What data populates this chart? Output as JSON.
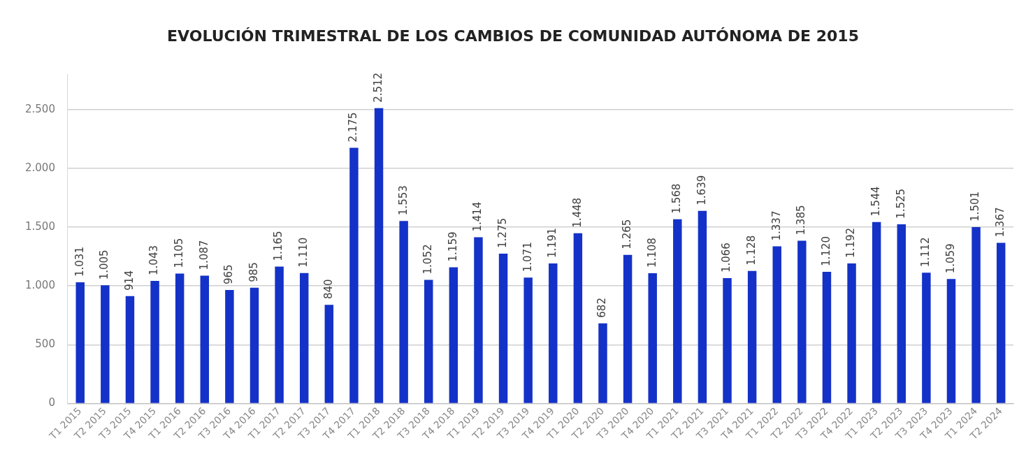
{
  "chart_data": {
    "type": "bar",
    "title": "EVOLUCIÓN TRIMESTRAL DE LOS CAMBIOS DE COMUNIDAD AUTÓNOMA DE 2015",
    "categories": [
      "T1 2015",
      "T2 2015",
      "T3 2015",
      "T4 2015",
      "T1 2016",
      "T2 2016",
      "T3 2016",
      "T4 2016",
      "T1 2017",
      "T2 2017",
      "T3 2017",
      "T4 2017",
      "T1 2018",
      "T2 2018",
      "T3 2018",
      "T4 2018",
      "T1 2019",
      "T2 2019",
      "T3 2019",
      "T4 2019",
      "T1 2020",
      "T2 2020",
      "T3 2020",
      "T4 2020",
      "T1 2021",
      "T2 2021",
      "T3 2021",
      "T4 2021",
      "T1 2022",
      "T2 2022",
      "T3 2022",
      "T4 2022",
      "T1 2023",
      "T2 2023",
      "T3 2023",
      "T4 2023",
      "T1 2024",
      "T2 2024"
    ],
    "values": [
      1031,
      1005,
      914,
      1043,
      1105,
      1087,
      965,
      985,
      1165,
      1110,
      840,
      2175,
      2512,
      1553,
      1052,
      1159,
      1414,
      1275,
      1071,
      1191,
      1448,
      682,
      1265,
      1108,
      1568,
      1639,
      1066,
      1128,
      1337,
      1385,
      1120,
      1192,
      1544,
      1525,
      1112,
      1059,
      1501,
      1367
    ],
    "color": "#1432c8",
    "ylim": [
      0,
      2800
    ],
    "yticks": [
      {
        "value": 0,
        "label": "0"
      },
      {
        "value": 500,
        "label": "500"
      },
      {
        "value": 1000,
        "label": "1.000"
      },
      {
        "value": 1500,
        "label": "1.500"
      },
      {
        "value": 2000,
        "label": "2.000"
      },
      {
        "value": 2500,
        "label": "2.500"
      }
    ],
    "value_labels": [
      "1.031",
      "1.005",
      "914",
      "1.043",
      "1.105",
      "1.087",
      "965",
      "985",
      "1.165",
      "1.110",
      "840",
      "2.175",
      "2.512",
      "1.553",
      "1.052",
      "1.159",
      "1.414",
      "1.275",
      "1.071",
      "1.191",
      "1.448",
      "682",
      "1.265",
      "1.108",
      "1.568",
      "1.639",
      "1.066",
      "1.128",
      "1.337",
      "1.385",
      "1.120",
      "1.192",
      "1.544",
      "1.525",
      "1.112",
      "1.059",
      "1.501",
      "1.367"
    ],
    "grid": "y",
    "legend": false
  }
}
